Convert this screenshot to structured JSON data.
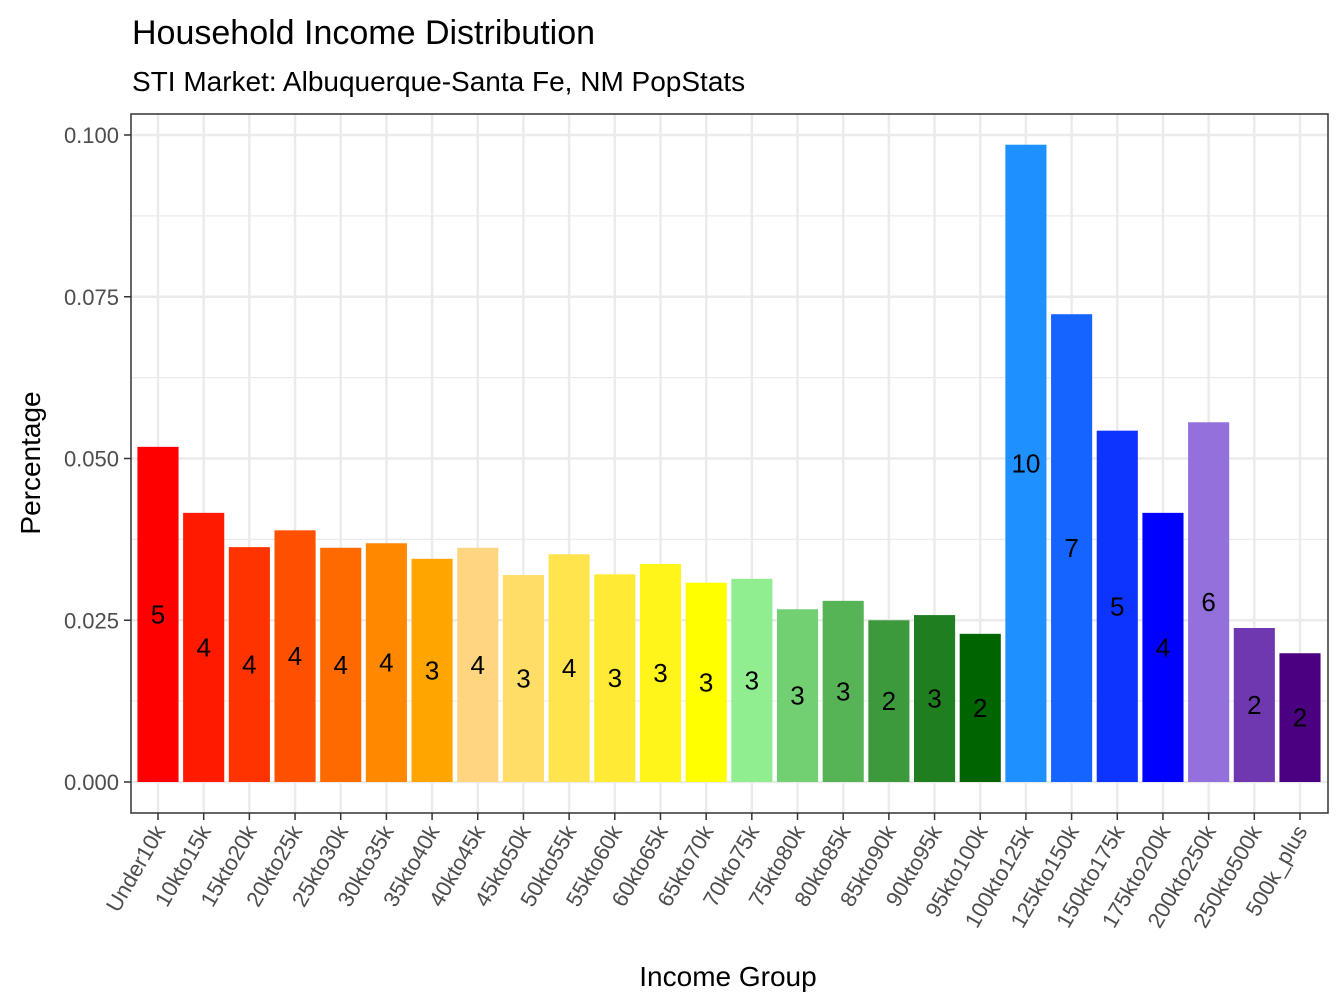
{
  "chart_data": {
    "type": "bar",
    "title": "Household Income Distribution",
    "subtitle": "STI Market: Albuquerque-Santa Fe, NM PopStats",
    "xlabel": "Income Group",
    "ylabel": "Percentage",
    "ylim": [
      0,
      0.1
    ],
    "yticks": [
      "0.000",
      "0.025",
      "0.050",
      "0.075",
      "0.100"
    ],
    "grid": true,
    "legend": "none",
    "categories": [
      "Under10k",
      "10kto15k",
      "15kto20k",
      "20kto25k",
      "25kto30k",
      "30kto35k",
      "35kto40k",
      "40kto45k",
      "45kto50k",
      "50kto55k",
      "55kto60k",
      "60kto65k",
      "65kto70k",
      "70kto75k",
      "75kto80k",
      "80kto85k",
      "85kto90k",
      "90kto95k",
      "95kto100k",
      "100kto125k",
      "125kto150k",
      "150kto175k",
      "175kto200k",
      "200kto250k",
      "250kto500k",
      "500k_plus"
    ],
    "values": [
      0.0518,
      0.0416,
      0.0363,
      0.0389,
      0.0362,
      0.0369,
      0.0345,
      0.0362,
      0.032,
      0.0352,
      0.0321,
      0.0337,
      0.0308,
      0.0314,
      0.0267,
      0.028,
      0.025,
      0.0258,
      0.0229,
      0.0985,
      0.0723,
      0.0543,
      0.0416,
      0.0556,
      0.0238,
      0.0199
    ],
    "labels": [
      "5",
      "4",
      "4",
      "4",
      "4",
      "4",
      "3",
      "4",
      "3",
      "4",
      "3",
      "3",
      "3",
      "3",
      "3",
      "3",
      "2",
      "3",
      "2",
      "10",
      "7",
      "5",
      "4",
      "6",
      "2",
      "2"
    ],
    "colors": [
      "#FF0000",
      "#FF1A00",
      "#FF3300",
      "#FF5000",
      "#FF6A00",
      "#FF8800",
      "#FFA500",
      "#FFD580",
      "#FFDD66",
      "#FFE44D",
      "#FFEB33",
      "#FFF51A",
      "#FFFF00",
      "#90EE90",
      "#72D072",
      "#56B456",
      "#3C9A3C",
      "#1F7F1F",
      "#006400",
      "#1E90FF",
      "#1564FF",
      "#0D33FF",
      "#0000FF",
      "#9370DB",
      "#7038B0",
      "#4B0082"
    ]
  }
}
